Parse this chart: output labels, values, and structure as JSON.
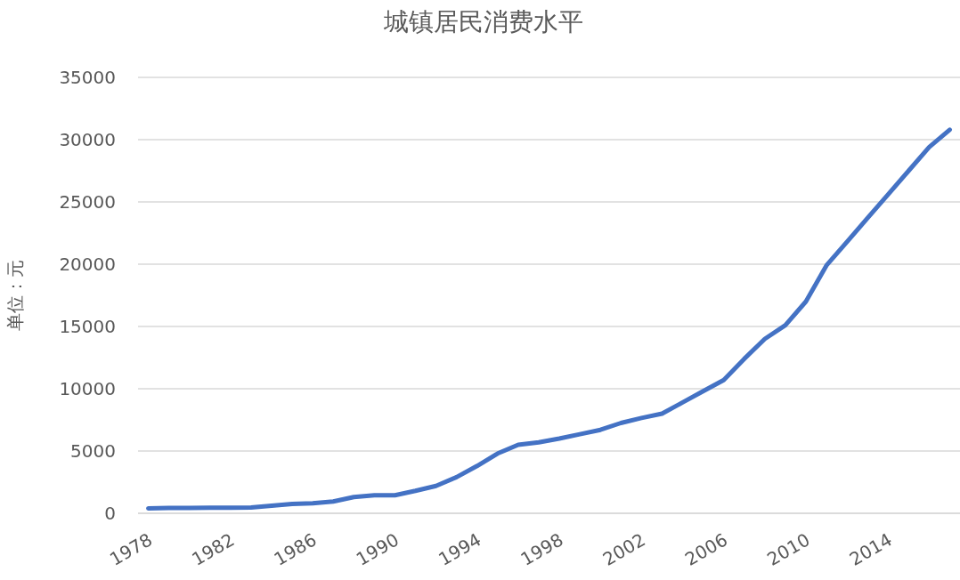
{
  "chart_data": {
    "type": "line",
    "title": "城镇居民消费水平",
    "ylabel": "单位：元",
    "categories": [
      "1978",
      null,
      null,
      null,
      "1982",
      null,
      null,
      null,
      "1986",
      null,
      null,
      null,
      "1990",
      null,
      null,
      null,
      "1994",
      null,
      null,
      null,
      "1998",
      null,
      null,
      null,
      "2002",
      null,
      null,
      null,
      "2006",
      null,
      null,
      null,
      "2010",
      null,
      null,
      null,
      "2014",
      null,
      null,
      null
    ],
    "series": [
      {
        "color": "#4472c4",
        "values": [
          400,
          420,
          430,
          440,
          450,
          460,
          600,
          750,
          800,
          950,
          1300,
          1450,
          1450,
          1800,
          2200,
          2900,
          3800,
          4800,
          5500,
          5700,
          6000,
          6350,
          6700,
          7250,
          7650,
          8000,
          8900,
          9800,
          10700,
          12400,
          14000,
          15100,
          17000,
          19900,
          21800,
          23700,
          25600,
          27500,
          29400,
          30800
        ]
      }
    ],
    "ylim": [
      0,
      35000
    ],
    "yticks": [
      0,
      5000,
      10000,
      15000,
      20000,
      25000,
      30000,
      35000
    ],
    "grid": "y",
    "marker": "none",
    "line_style": "solid"
  }
}
